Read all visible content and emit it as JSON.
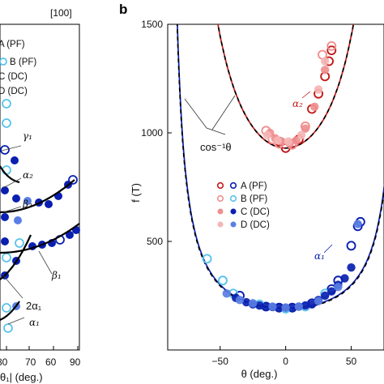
{
  "colors": {
    "red": "#c41a1a",
    "red_light": "#ef8f8f",
    "red_pale": "#f5b5b5",
    "blue": "#0a1fb0",
    "blue_sky": "#59c3ea",
    "blue_mid": "#5a7ee3",
    "black": "#000000"
  },
  "left_panel": {
    "header": "[100]",
    "legend": [
      "A (PF)",
      "B (PF)",
      "C (DC)",
      "D (DC)"
    ],
    "xlabel": "θ₁| (deg.)",
    "xticks": [
      "80",
      "70",
      "60",
      "90"
    ],
    "annotations": {
      "gamma1": "γ₁",
      "alpha2": "α₂",
      "beta2": "β₂",
      "beta1": "β₁",
      "two_alpha1": "2α₁",
      "alpha1": "α₁"
    }
  },
  "right_panel": {
    "label": "b",
    "cos_label": "cos⁻¹θ",
    "alpha2": "α₂",
    "alpha1": "α₁",
    "legend": [
      {
        "label": "A (PF)",
        "style": "open",
        "color_key": "red_blue_open"
      },
      {
        "label": "B (PF)",
        "style": "open-light"
      },
      {
        "label": "C (DC)",
        "style": "filled"
      },
      {
        "label": "D (DC)",
        "style": "filled-light"
      }
    ]
  },
  "chart_data": {
    "type": "scatter",
    "xlabel": "θ (deg.)",
    "ylabel": "f (T)",
    "xlim": [
      -90,
      75
    ],
    "ylim": [
      0,
      1500
    ],
    "xticks": [
      -50,
      0,
      50
    ],
    "yticks": [
      500,
      1000,
      1500
    ],
    "grid": false,
    "legend_position": "middle-right",
    "series": [
      {
        "name": "A (PF)",
        "branch": "alpha2",
        "marker": "open",
        "color": "#c41a1a",
        "x": [
          -5,
          0,
          5,
          10,
          20,
          25,
          30,
          33,
          35
        ],
        "y": [
          960,
          930,
          950,
          970,
          1110,
          1180,
          1260,
          1330,
          1380
        ]
      },
      {
        "name": "B (PF)",
        "branch": "alpha2",
        "marker": "open",
        "color": "#ef8f8f",
        "x": [
          -15,
          -10,
          -5,
          5,
          15,
          28,
          35
        ],
        "y": [
          1010,
          970,
          950,
          945,
          1030,
          1360,
          1400
        ]
      },
      {
        "name": "C (DC)",
        "branch": "alpha2",
        "marker": "filled",
        "color": "#ef8f8f",
        "x": [
          -12,
          -8,
          -3,
          3,
          8,
          15,
          22,
          30
        ],
        "y": [
          1000,
          975,
          960,
          950,
          965,
          1020,
          1120,
          1290
        ]
      },
      {
        "name": "D (DC)",
        "branch": "alpha2",
        "marker": "filled",
        "color": "#f5b5b5",
        "x": [
          -14,
          -6,
          2,
          12,
          25,
          30
        ],
        "y": [
          990,
          965,
          960,
          990,
          1200,
          1330
        ]
      },
      {
        "name": "A (PF)",
        "branch": "alpha1",
        "marker": "open",
        "color": "#0a1fb0",
        "x": [
          -35,
          -15,
          -5,
          5,
          20,
          35,
          40,
          50,
          55,
          57
        ],
        "y": [
          250,
          200,
          195,
          195,
          215,
          280,
          320,
          480,
          570,
          590
        ]
      },
      {
        "name": "B (PF)",
        "branch": "alpha1",
        "marker": "open",
        "color": "#59c3ea",
        "x": [
          -60,
          -48,
          -40,
          -20,
          0,
          15,
          30
        ],
        "y": [
          420,
          320,
          260,
          210,
          190,
          200,
          260
        ]
      },
      {
        "name": "C (DC)",
        "branch": "alpha1",
        "marker": "filled",
        "color": "#0a1fb0",
        "x": [
          -38,
          -30,
          -25,
          -20,
          -15,
          -10,
          -5,
          0,
          5,
          10,
          15,
          20,
          25,
          30,
          35,
          40,
          45,
          50
        ],
        "y": [
          240,
          220,
          210,
          205,
          200,
          198,
          195,
          195,
          195,
          200,
          205,
          210,
          230,
          250,
          270,
          300,
          330,
          380
        ]
      },
      {
        "name": "D (DC)",
        "branch": "alpha1",
        "marker": "filled",
        "color": "#5a7ee3",
        "x": [
          -45,
          -35,
          -25,
          -10,
          0,
          10,
          25,
          40,
          55
        ],
        "y": [
          260,
          230,
          215,
          200,
          195,
          200,
          225,
          290,
          580
        ]
      }
    ],
    "fits": [
      {
        "name": "alpha2 fit",
        "color": "#c41a1a",
        "style": "solid",
        "f0": 930,
        "stretch": 1.0
      },
      {
        "name": "alpha1 fit",
        "color": "#0a1fb0",
        "style": "solid",
        "f0": 193,
        "stretch": 1.0
      },
      {
        "name": "cos⁻¹θ",
        "color": "#000000",
        "style": "dashed",
        "f0": 930,
        "stretch": 1.0
      },
      {
        "name": "cos⁻¹θ",
        "color": "#000000",
        "style": "dashed",
        "f0": 190,
        "stretch": 1.0
      }
    ]
  }
}
